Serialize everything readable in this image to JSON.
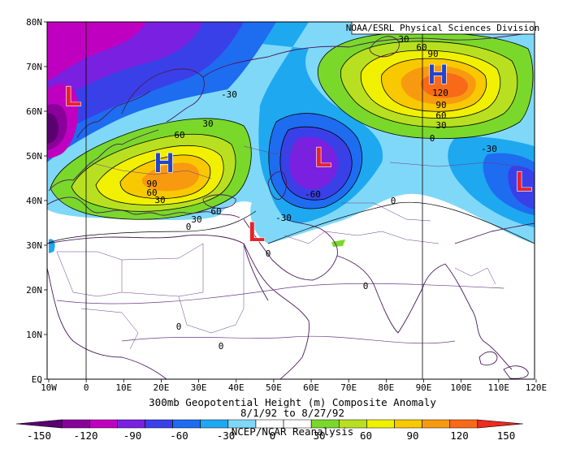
{
  "credit": "NOAA/ESRL Physical Sciences Division",
  "title_line1": "300mb Geopotential Height (m) Composite Anomaly",
  "title_line2": "8/1/92 to 8/27/92",
  "source": "NCEP/NCAR Reanalysis",
  "lat_labels": [
    "80N",
    "70N",
    "60N",
    "50N",
    "40N",
    "30N",
    "20N",
    "10N",
    "EQ"
  ],
  "lon_labels": [
    "10W",
    "0",
    "10E",
    "20E",
    "30E",
    "40E",
    "50E",
    "60E",
    "70E",
    "80E",
    "90E",
    "100E",
    "110E",
    "120E"
  ],
  "colorbar": {
    "ticks": [
      "-150",
      "-120",
      "-90",
      "-60",
      "-30",
      "0",
      "30",
      "60",
      "90",
      "120",
      "150"
    ],
    "colors": [
      "#5a0070",
      "#8a009a",
      "#c000c0",
      "#7a20e0",
      "#3a40e8",
      "#1e6cf0",
      "#1ea8f0",
      "#80d8f8",
      "#ffffff",
      "#ffffff",
      "#7ad82a",
      "#b8e020",
      "#f0f000",
      "#f8c800",
      "#f89a10",
      "#f86a18",
      "#f02a1e"
    ]
  },
  "centers": [
    {
      "kind": "L",
      "color": "#e8222a"
    },
    {
      "kind": "H",
      "color": "#2244cc"
    },
    {
      "kind": "L",
      "color": "#e8222a"
    },
    {
      "kind": "L",
      "color": "#e8222a"
    },
    {
      "kind": "H",
      "color": "#2244cc"
    },
    {
      "kind": "L",
      "color": "#e8222a"
    }
  ],
  "contour_labels": [
    "-30",
    "30",
    "60",
    "30",
    "60",
    "90",
    "60",
    "30",
    "0",
    "-60",
    "-30",
    "0",
    "30",
    "60",
    "90",
    "120",
    "90",
    "60",
    "30",
    "0",
    "-30",
    "0",
    "0",
    "0",
    "0"
  ]
}
